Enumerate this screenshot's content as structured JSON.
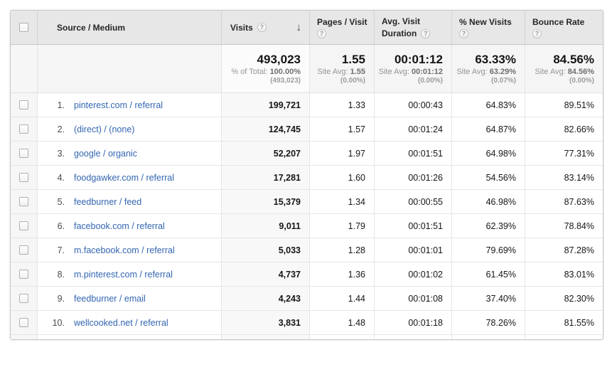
{
  "icons": {
    "help": "?",
    "sort_desc": "↓"
  },
  "header": {
    "source_medium": "Source / Medium",
    "visits": "Visits",
    "pages_visit": "Pages / Visit",
    "avg_visit_line1": "Avg. Visit",
    "avg_visit_line2": "Duration",
    "new_visits": "% New Visits",
    "bounce_rate": "Bounce Rate"
  },
  "summary": {
    "visits": {
      "value": "493,023",
      "label": "% of Total:",
      "avg": "100.00%",
      "sub": "(493,023)"
    },
    "pages": {
      "value": "1.55",
      "label": "Site Avg:",
      "avg": "1.55",
      "sub": "(0.00%)"
    },
    "duration": {
      "value": "00:01:12",
      "label": "Site Avg:",
      "avg": "00:01:12",
      "sub": "(0.00%)"
    },
    "new_visits": {
      "value": "63.33%",
      "label": "Site Avg:",
      "avg": "63.29%",
      "sub": "(0.07%)"
    },
    "bounce": {
      "value": "84.56%",
      "label": "Site Avg:",
      "avg": "84.56%",
      "sub": "(0.00%)"
    }
  },
  "rows": [
    {
      "rank": "1.",
      "source": "pinterest.com / referral",
      "visits": "199,721",
      "pages": "1.33",
      "duration": "00:00:43",
      "new_visits": "64.83%",
      "bounce": "89.51%"
    },
    {
      "rank": "2.",
      "source": "(direct) / (none)",
      "visits": "124,745",
      "pages": "1.57",
      "duration": "00:01:24",
      "new_visits": "64.87%",
      "bounce": "82.66%"
    },
    {
      "rank": "3.",
      "source": "google / organic",
      "visits": "52,207",
      "pages": "1.97",
      "duration": "00:01:51",
      "new_visits": "64.98%",
      "bounce": "77.31%"
    },
    {
      "rank": "4.",
      "source": "foodgawker.com / referral",
      "visits": "17,281",
      "pages": "1.60",
      "duration": "00:01:26",
      "new_visits": "54.56%",
      "bounce": "83.14%"
    },
    {
      "rank": "5.",
      "source": "feedburner / feed",
      "visits": "15,379",
      "pages": "1.34",
      "duration": "00:00:55",
      "new_visits": "46.98%",
      "bounce": "87.63%"
    },
    {
      "rank": "6.",
      "source": "facebook.com / referral",
      "visits": "9,011",
      "pages": "1.79",
      "duration": "00:01:51",
      "new_visits": "62.39%",
      "bounce": "78.84%"
    },
    {
      "rank": "7.",
      "source": "m.facebook.com / referral",
      "visits": "5,033",
      "pages": "1.28",
      "duration": "00:01:01",
      "new_visits": "79.69%",
      "bounce": "87.28%"
    },
    {
      "rank": "8.",
      "source": "m.pinterest.com / referral",
      "visits": "4,737",
      "pages": "1.36",
      "duration": "00:01:02",
      "new_visits": "61.45%",
      "bounce": "83.01%"
    },
    {
      "rank": "9.",
      "source": "feedburner / email",
      "visits": "4,243",
      "pages": "1.44",
      "duration": "00:01:08",
      "new_visits": "37.40%",
      "bounce": "82.30%"
    },
    {
      "rank": "10.",
      "source": "wellcooked.net / referral",
      "visits": "3,831",
      "pages": "1.48",
      "duration": "00:01:18",
      "new_visits": "78.26%",
      "bounce": "81.55%"
    }
  ],
  "colors": {
    "link_blue": "#3366b2",
    "header_bg": "#e7e7e7",
    "sorted_col_bg": "#f8f8f8"
  }
}
